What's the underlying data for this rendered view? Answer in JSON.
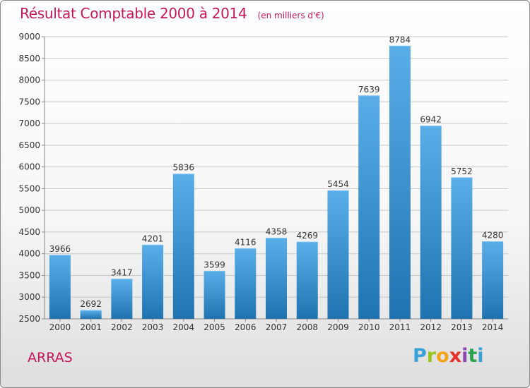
{
  "header": {
    "title": "Résultat Comptable 2000 à 2014",
    "subtitle": "(en milliers d'€)"
  },
  "footer": {
    "commune": "ARRAS",
    "logo": [
      "P",
      "r",
      "o",
      "x",
      "i",
      "t",
      "i"
    ]
  },
  "colors": {
    "title": "#c2185b",
    "bar_top": "#5aaee8",
    "bar_bottom": "#1f73b0",
    "grid": "#c8c8c8"
  },
  "chart_data": {
    "type": "bar",
    "title": "Résultat Comptable 2000 à 2014",
    "categories": [
      "2000",
      "2001",
      "2002",
      "2003",
      "2004",
      "2005",
      "2006",
      "2007",
      "2008",
      "2009",
      "2010",
      "2011",
      "2012",
      "2013",
      "2014"
    ],
    "values": [
      3966,
      2692,
      3417,
      4201,
      5836,
      3599,
      4116,
      4358,
      4269,
      5454,
      7639,
      8784,
      6942,
      5752,
      4280
    ],
    "ylim": [
      2500,
      9000
    ],
    "yticks": [
      2500,
      3000,
      3500,
      4000,
      4500,
      5000,
      5500,
      6000,
      6500,
      7000,
      7500,
      8000,
      8500,
      9000
    ],
    "xlabel": "",
    "ylabel": "",
    "grid": "horizontal",
    "data_labels": true
  }
}
